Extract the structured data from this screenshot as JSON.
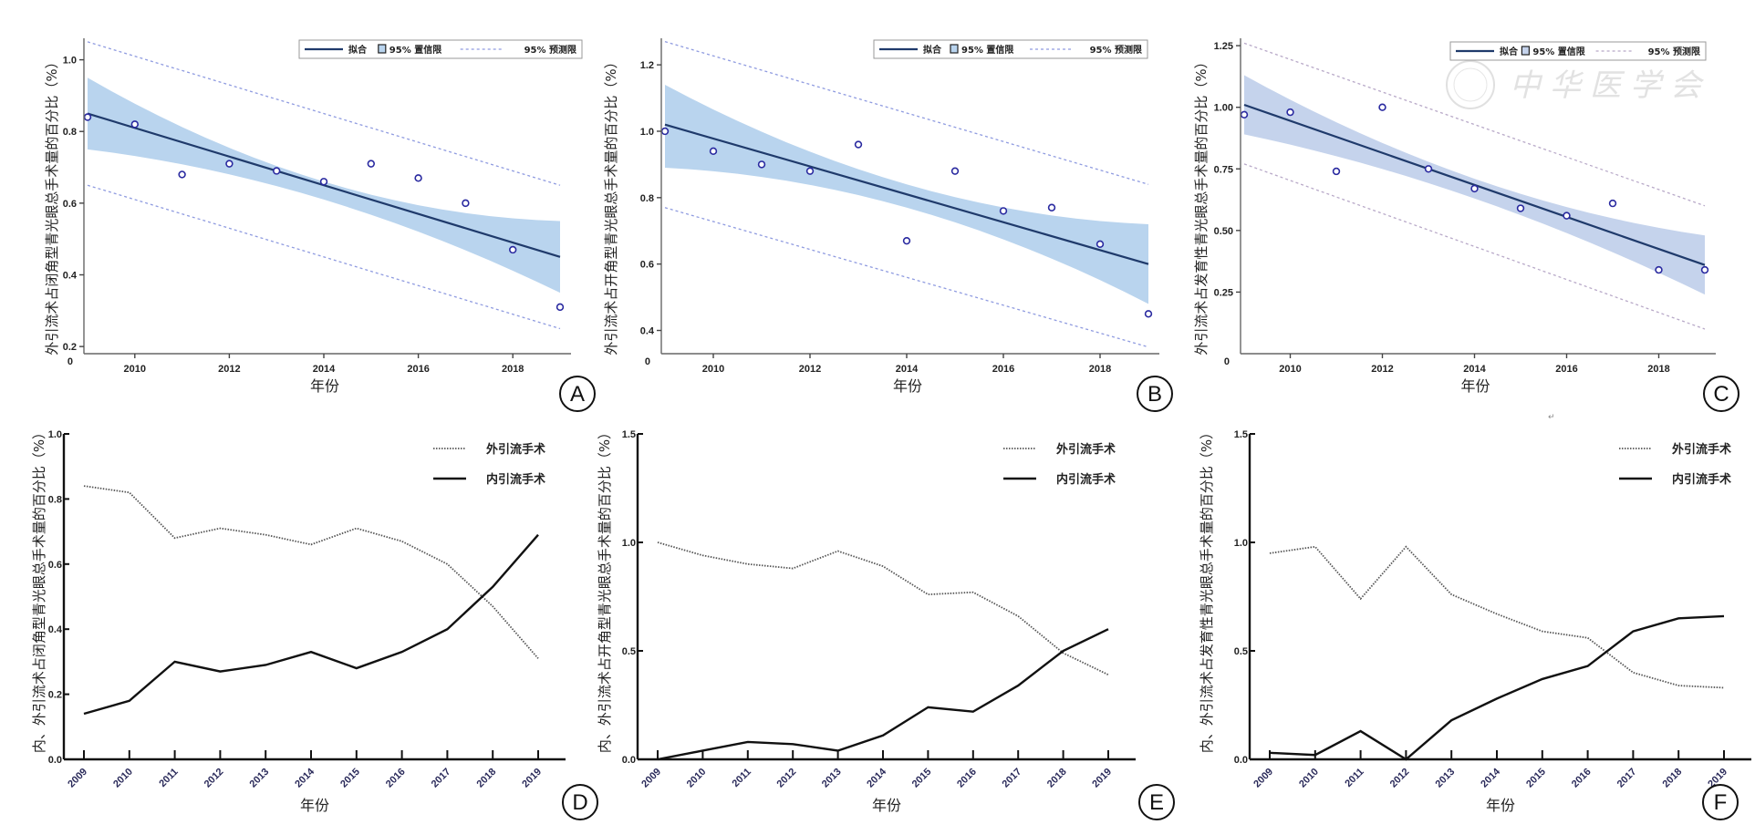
{
  "figure": {
    "watermark": "中华医学会",
    "stray_mark": "↵"
  },
  "chart_data": [
    {
      "panel": "A",
      "type": "scatter",
      "subtype": "linear-regression",
      "xlabel": "年份",
      "ylabel": "外引流术占闭角型青光眼总手术量的百分比（%）",
      "x_ticks": [
        "2010",
        "2012",
        "2014",
        "2016",
        "2018"
      ],
      "y_ticks": [
        "0",
        "0.2",
        "0.4",
        "0.6",
        "0.8",
        "1.0"
      ],
      "xlim": [
        2009,
        2019
      ],
      "ylim": [
        0.18,
        1.06
      ],
      "legend": {
        "fit": "拟合",
        "ci": "95% 置信限",
        "pi": "95% 预测限",
        "position": "top-right"
      },
      "x": [
        2009,
        2010,
        2011,
        2012,
        2013,
        2014,
        2015,
        2016,
        2017,
        2018,
        2019
      ],
      "y": [
        0.84,
        0.82,
        0.68,
        0.71,
        0.69,
        0.66,
        0.71,
        0.67,
        0.6,
        0.47,
        0.31
      ],
      "fit": {
        "x0": 2009,
        "y0": 0.85,
        "x1": 2019,
        "y1": 0.45
      },
      "ci": {
        "upper_start": 0.95,
        "upper_mid": 0.66,
        "upper_end": 0.55,
        "lower_start": 0.75,
        "lower_mid": 0.61,
        "lower_end": 0.35
      },
      "pi": {
        "upper_start": 1.05,
        "upper_end": 0.65,
        "lower_start": 0.65,
        "lower_end": 0.25
      },
      "panel_label": "A"
    },
    {
      "panel": "B",
      "type": "scatter",
      "subtype": "linear-regression",
      "xlabel": "年份",
      "ylabel": "外引流术占开角型青光眼总手术量的百分比（%）",
      "x_ticks": [
        "2010",
        "2012",
        "2014",
        "2016",
        "2018"
      ],
      "y_ticks": [
        "0",
        "0.4",
        "0.6",
        "0.8",
        "1.0",
        "1.2"
      ],
      "xlim": [
        2009,
        2019
      ],
      "ylim": [
        0.33,
        1.28
      ],
      "legend": {
        "fit": "拟合",
        "ci": "95% 置信限",
        "pi": "95% 预测限",
        "position": "top-right"
      },
      "x": [
        2009,
        2010,
        2011,
        2012,
        2013,
        2014,
        2015,
        2016,
        2017,
        2018,
        2019
      ],
      "y": [
        1.0,
        0.94,
        0.9,
        0.88,
        0.96,
        0.67,
        0.88,
        0.76,
        0.77,
        0.66,
        0.45
      ],
      "fit": {
        "x0": 2009,
        "y0": 1.02,
        "x1": 2019,
        "y1": 0.6
      },
      "ci": {
        "upper_start": 1.14,
        "upper_mid": 0.84,
        "upper_end": 0.72,
        "lower_start": 0.89,
        "lower_mid": 0.77,
        "lower_end": 0.48
      },
      "pi": {
        "upper_start": 1.27,
        "upper_end": 0.84,
        "lower_start": 0.77,
        "lower_end": 0.35
      },
      "panel_label": "B"
    },
    {
      "panel": "C",
      "type": "scatter",
      "subtype": "linear-regression",
      "xlabel": "年份",
      "ylabel": "外引流术占发育性青光眼总手术量的百分比（%）",
      "x_ticks": [
        "2010",
        "2012",
        "2014",
        "2016",
        "2018"
      ],
      "y_ticks": [
        "0",
        "0.25",
        "0.50",
        "0.75",
        "1.00",
        "1.25"
      ],
      "xlim": [
        2009,
        2019
      ],
      "ylim": [
        0,
        1.28
      ],
      "legend": {
        "fit": "拟合",
        "ci": "95% 置信限",
        "pi": "95% 预测限",
        "position": "top-right"
      },
      "x": [
        2009,
        2010,
        2011,
        2012,
        2013,
        2014,
        2015,
        2016,
        2017,
        2018,
        2019
      ],
      "y": [
        0.97,
        0.98,
        0.74,
        1.0,
        0.75,
        0.67,
        0.59,
        0.56,
        0.61,
        0.34,
        0.34
      ],
      "fit": {
        "x0": 2009,
        "y0": 1.01,
        "x1": 2019,
        "y1": 0.36
      },
      "ci": {
        "upper_start": 1.13,
        "upper_mid": 0.71,
        "upper_end": 0.48,
        "lower_start": 0.89,
        "lower_mid": 0.63,
        "lower_end": 0.24
      },
      "pi": {
        "upper_start": 1.26,
        "upper_end": 0.6,
        "lower_start": 0.77,
        "lower_end": 0.1
      },
      "panel_label": "C"
    },
    {
      "panel": "D",
      "type": "line",
      "xlabel": "年份",
      "ylabel": "内、外引流术占闭角型青光眼总手术量的百分比（%）",
      "categories": [
        "2009",
        "2010",
        "2011",
        "2012",
        "2013",
        "2014",
        "2015",
        "2016",
        "2017",
        "2018",
        "2019"
      ],
      "y_ticks": [
        "0.0",
        "0.2",
        "0.4",
        "0.6",
        "0.8",
        "1.0"
      ],
      "ylim": [
        0,
        1.0
      ],
      "legend_position": "top-right",
      "series": [
        {
          "name": "外引流手术",
          "style": "dotted",
          "values": [
            0.84,
            0.82,
            0.68,
            0.71,
            0.69,
            0.66,
            0.71,
            0.67,
            0.6,
            0.47,
            0.31
          ]
        },
        {
          "name": "内引流手术",
          "style": "solid",
          "values": [
            0.14,
            0.18,
            0.3,
            0.27,
            0.29,
            0.33,
            0.28,
            0.33,
            0.4,
            0.53,
            0.69
          ]
        }
      ],
      "panel_label": "D"
    },
    {
      "panel": "E",
      "type": "line",
      "xlabel": "年份",
      "ylabel": "内、外引流术占开角型青光眼总手术量的百分比（%）",
      "categories": [
        "2009",
        "2010",
        "2011",
        "2012",
        "2013",
        "2014",
        "2015",
        "2016",
        "2017",
        "2018",
        "2019"
      ],
      "y_ticks": [
        "0.0",
        "0.5",
        "1.0",
        "1.5"
      ],
      "ylim": [
        0,
        1.5
      ],
      "legend_position": "top-right",
      "series": [
        {
          "name": "外引流手术",
          "style": "dotted",
          "values": [
            1.0,
            0.94,
            0.9,
            0.88,
            0.96,
            0.89,
            0.76,
            0.77,
            0.66,
            0.49,
            0.39
          ]
        },
        {
          "name": "内引流手术",
          "style": "solid",
          "values": [
            0.0,
            0.04,
            0.08,
            0.07,
            0.04,
            0.11,
            0.24,
            0.22,
            0.34,
            0.5,
            0.6
          ]
        }
      ],
      "panel_label": "E"
    },
    {
      "panel": "F",
      "type": "line",
      "xlabel": "年份",
      "ylabel": "内、外引流术占发育性青光眼总手术量的百分比（%）",
      "categories": [
        "2009",
        "2010",
        "2011",
        "2012",
        "2013",
        "2014",
        "2015",
        "2016",
        "2017",
        "2018",
        "2019"
      ],
      "y_ticks": [
        "0.0",
        "0.5",
        "1.0",
        "1.5"
      ],
      "ylim": [
        0,
        1.5
      ],
      "legend_position": "top-right",
      "series": [
        {
          "name": "外引流手术",
          "style": "dotted",
          "values": [
            0.95,
            0.98,
            0.74,
            0.98,
            0.76,
            0.67,
            0.59,
            0.56,
            0.4,
            0.34,
            0.33
          ]
        },
        {
          "name": "内引流手术",
          "style": "solid",
          "values": [
            0.03,
            0.02,
            0.13,
            0.0,
            0.18,
            0.28,
            0.37,
            0.43,
            0.59,
            0.65,
            0.66
          ]
        }
      ],
      "panel_label": "F"
    }
  ]
}
